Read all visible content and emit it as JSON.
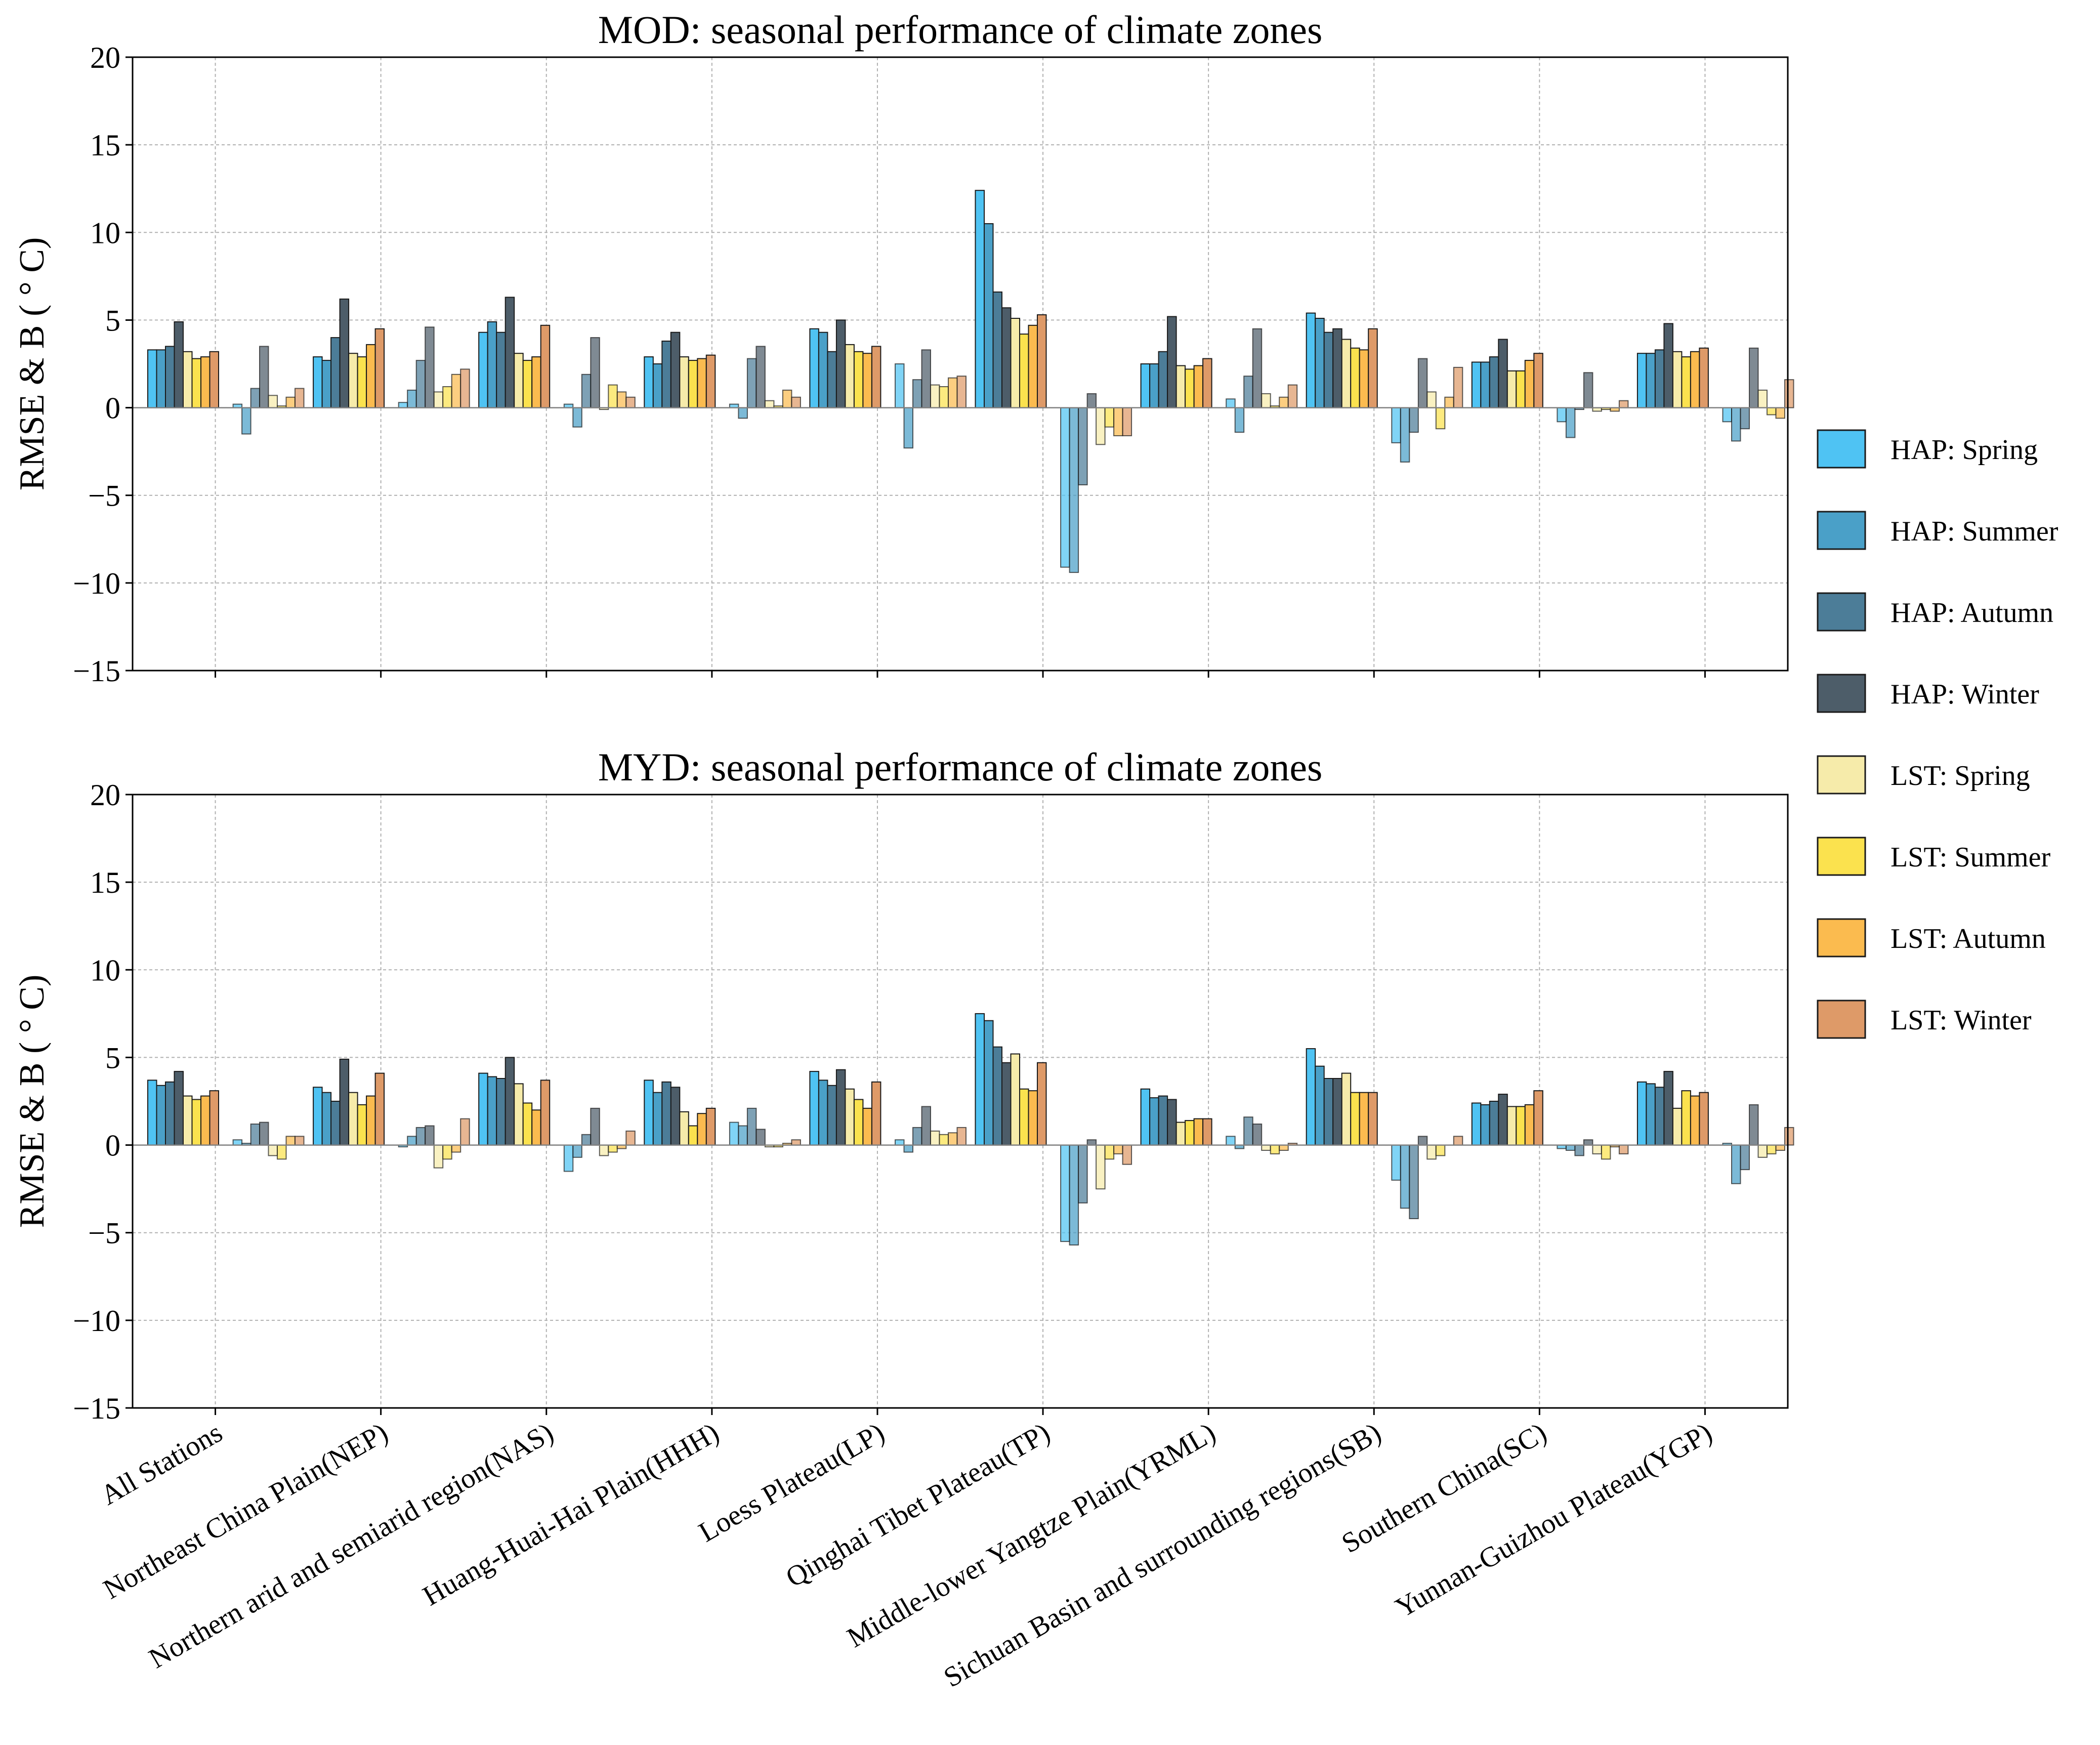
{
  "chart_data": [
    {
      "type": "bar",
      "title": "MOD: seasonal performance of climate zones",
      "ylabel": "RMSE & B ( ° C)",
      "xlabel": "",
      "ylim": [
        -15,
        20
      ],
      "yticks": [
        -15,
        -10,
        -5,
        0,
        5,
        10,
        15,
        20
      ],
      "ytick_labels": [
        "−15",
        "−10",
        "−5",
        "0",
        "5",
        "10",
        "15",
        "20"
      ],
      "grid": true,
      "categories": [
        "All Stations",
        "Northeast China Plain(NEP)",
        "Northern arid and semiarid region(NAS)",
        "Huang-Huai-Hai Plain(HHH)",
        "Loess Plateau(LP)",
        "Qinghai Tibet Plateau(TP)",
        "Middle-lower Yangtze Plain(YRML)",
        "Sichuan Basin and surrounding regions(SB)",
        "Southern China(SC)",
        "Yunnan-Guizhou Plateau(YGP)"
      ],
      "series": [
        {
          "name": "HAP: Spring",
          "rmse": [
            3.3,
            2.9,
            4.3,
            2.9,
            4.5,
            12.4,
            2.5,
            5.4,
            2.6,
            3.1
          ],
          "bias": [
            0.2,
            0.3,
            0.2,
            0.2,
            2.5,
            -9.1,
            0.5,
            -2.0,
            -0.8,
            -0.8
          ]
        },
        {
          "name": "HAP: Summer",
          "rmse": [
            3.3,
            2.7,
            4.9,
            2.5,
            4.3,
            10.5,
            2.5,
            5.1,
            2.6,
            3.1
          ],
          "bias": [
            -1.5,
            1.0,
            -1.1,
            -0.6,
            -2.3,
            -9.4,
            -1.4,
            -3.1,
            -1.7,
            -1.9
          ]
        },
        {
          "name": "HAP: Autumn",
          "rmse": [
            3.5,
            4.0,
            4.3,
            3.8,
            3.2,
            6.6,
            3.2,
            4.3,
            2.9,
            3.3
          ],
          "bias": [
            1.1,
            2.7,
            1.9,
            2.8,
            1.6,
            -4.4,
            1.8,
            -1.4,
            -0.1,
            -1.2
          ]
        },
        {
          "name": "HAP: Winter",
          "rmse": [
            4.9,
            6.2,
            6.3,
            4.3,
            5.0,
            5.7,
            5.2,
            4.5,
            3.9,
            4.8
          ],
          "bias": [
            3.5,
            4.6,
            4.0,
            3.5,
            3.3,
            0.8,
            4.5,
            2.8,
            2.0,
            3.4
          ]
        },
        {
          "name": "LST: Spring",
          "rmse": [
            3.2,
            3.1,
            3.1,
            2.9,
            3.6,
            5.1,
            2.4,
            3.9,
            2.1,
            3.2
          ],
          "bias": [
            0.7,
            0.9,
            -0.1,
            0.4,
            1.3,
            -2.1,
            0.8,
            0.9,
            -0.2,
            1.0
          ]
        },
        {
          "name": "LST: Summer",
          "rmse": [
            2.8,
            2.9,
            2.7,
            2.7,
            3.2,
            4.2,
            2.2,
            3.4,
            2.1,
            2.9
          ],
          "bias": [
            0.1,
            1.2,
            1.3,
            0.1,
            1.2,
            -1.1,
            0.1,
            -1.2,
            -0.1,
            -0.4
          ]
        },
        {
          "name": "LST: Autumn",
          "rmse": [
            2.9,
            3.6,
            2.9,
            2.8,
            3.1,
            4.7,
            2.4,
            3.3,
            2.7,
            3.2
          ],
          "bias": [
            0.6,
            1.9,
            0.9,
            1.0,
            1.7,
            -1.6,
            0.6,
            0.6,
            -0.2,
            -0.6
          ]
        },
        {
          "name": "LST: Winter",
          "rmse": [
            3.2,
            4.5,
            4.7,
            3.0,
            3.5,
            5.3,
            2.8,
            4.5,
            3.1,
            3.4
          ],
          "bias": [
            1.1,
            2.2,
            0.6,
            0.6,
            1.8,
            -1.6,
            1.3,
            2.3,
            0.4,
            1.6
          ]
        }
      ]
    },
    {
      "type": "bar",
      "title": "MYD: seasonal performance of climate zones",
      "ylabel": "RMSE & B ( ° C)",
      "xlabel": "",
      "ylim": [
        -15,
        20
      ],
      "yticks": [
        -15,
        -10,
        -5,
        0,
        5,
        10,
        15,
        20
      ],
      "ytick_labels": [
        "−15",
        "−10",
        "−5",
        "0",
        "5",
        "10",
        "15",
        "20"
      ],
      "grid": true,
      "categories": [
        "All Stations",
        "Northeast China Plain(NEP)",
        "Northern arid and semiarid region(NAS)",
        "Huang-Huai-Hai Plain(HHH)",
        "Loess Plateau(LP)",
        "Qinghai Tibet Plateau(TP)",
        "Middle-lower Yangtze Plain(YRML)",
        "Sichuan Basin and surrounding regions(SB)",
        "Southern China(SC)",
        "Yunnan-Guizhou Plateau(YGP)"
      ],
      "series": [
        {
          "name": "HAP: Spring",
          "rmse": [
            3.7,
            3.3,
            4.1,
            3.7,
            4.2,
            7.5,
            3.2,
            5.5,
            2.4,
            3.6
          ],
          "bias": [
            0.3,
            -0.1,
            -1.5,
            1.3,
            0.3,
            -5.5,
            0.5,
            -2.0,
            -0.2,
            0.1
          ]
        },
        {
          "name": "HAP: Summer",
          "rmse": [
            3.4,
            3.0,
            3.9,
            3.0,
            3.7,
            7.1,
            2.7,
            4.5,
            2.3,
            3.5
          ],
          "bias": [
            0.1,
            0.5,
            -0.7,
            1.1,
            -0.4,
            -5.7,
            -0.2,
            -3.6,
            -0.3,
            -2.2
          ]
        },
        {
          "name": "HAP: Autumn",
          "rmse": [
            3.6,
            2.5,
            3.8,
            3.6,
            3.4,
            5.6,
            2.8,
            3.8,
            2.5,
            3.3
          ],
          "bias": [
            1.2,
            1.0,
            0.6,
            2.1,
            1.0,
            -3.3,
            1.6,
            -4.2,
            -0.6,
            -1.4
          ]
        },
        {
          "name": "HAP: Winter",
          "rmse": [
            4.2,
            4.9,
            5.0,
            3.3,
            4.3,
            4.7,
            2.6,
            3.8,
            2.9,
            4.2
          ],
          "bias": [
            1.3,
            1.1,
            2.1,
            0.9,
            2.2,
            0.3,
            1.2,
            0.5,
            0.3,
            2.3
          ]
        },
        {
          "name": "LST: Spring",
          "rmse": [
            2.8,
            3.0,
            3.5,
            1.9,
            3.2,
            5.2,
            1.3,
            4.1,
            2.2,
            2.1
          ],
          "bias": [
            -0.6,
            -1.3,
            -0.6,
            -0.1,
            0.8,
            -2.5,
            -0.3,
            -0.8,
            -0.5,
            -0.7
          ]
        },
        {
          "name": "LST: Summer",
          "rmse": [
            2.6,
            2.3,
            2.4,
            1.1,
            2.6,
            3.2,
            1.4,
            3.0,
            2.2,
            3.1
          ],
          "bias": [
            -0.8,
            -0.8,
            -0.4,
            -0.1,
            0.6,
            -0.8,
            -0.5,
            -0.6,
            -0.8,
            -0.5
          ]
        },
        {
          "name": "LST: Autumn",
          "rmse": [
            2.8,
            2.8,
            2.0,
            1.8,
            2.1,
            3.1,
            1.5,
            3.0,
            2.3,
            2.8
          ],
          "bias": [
            0.5,
            -0.4,
            -0.2,
            0.1,
            0.7,
            -0.5,
            -0.3,
            0.0,
            -0.1,
            -0.3
          ]
        },
        {
          "name": "LST: Winter",
          "rmse": [
            3.1,
            4.1,
            3.7,
            2.1,
            3.6,
            4.7,
            1.5,
            3.0,
            3.1,
            3.0
          ],
          "bias": [
            0.5,
            1.5,
            0.8,
            0.3,
            1.0,
            -1.1,
            0.1,
            0.5,
            -0.5,
            1.0
          ]
        }
      ]
    }
  ],
  "legend": {
    "placement": "right",
    "entries": [
      {
        "label": "HAP: Spring",
        "color": "#4fc3f3"
      },
      {
        "label": "HAP: Summer",
        "color": "#4aa0c8"
      },
      {
        "label": "HAP: Autumn",
        "color": "#4c7d98"
      },
      {
        "label": "HAP: Winter",
        "color": "#4d5d69"
      },
      {
        "label": "LST: Spring",
        "color": "#f6ebaa"
      },
      {
        "label": "LST: Summer",
        "color": "#fbe24e"
      },
      {
        "label": "LST: Autumn",
        "color": "#fbbb4f"
      },
      {
        "label": "LST: Winter",
        "color": "#de9a68"
      }
    ]
  }
}
